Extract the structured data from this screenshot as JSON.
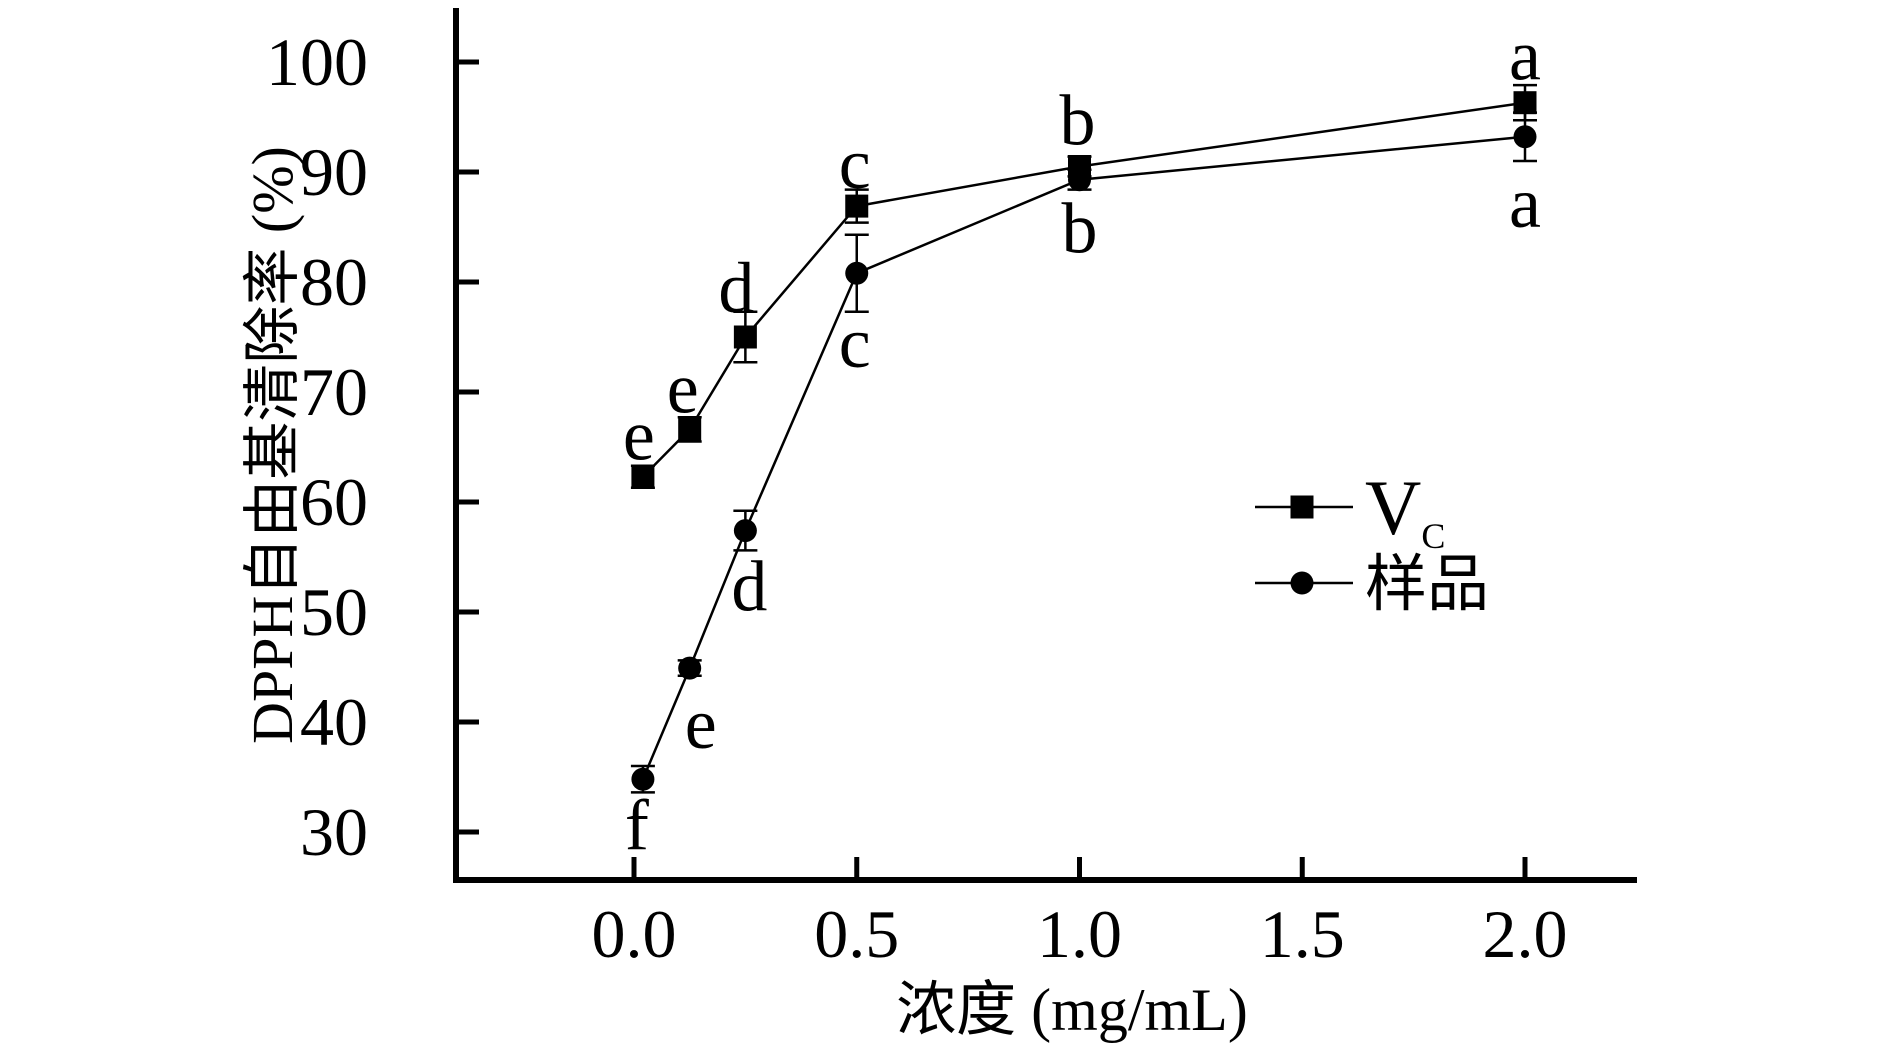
{
  "figure": {
    "background": "#ffffff",
    "ink": "#000000"
  },
  "chart_data": {
    "type": "line",
    "title": "",
    "xlabel": "浓度 (mg/mL)",
    "ylabel": "DPPH自由基清除率 (%)",
    "x_tick_labels": [
      "0.0",
      "0.5",
      "1.0",
      "1.5",
      "2.0"
    ],
    "x_tick_values": [
      0,
      0.5,
      1.0,
      1.5,
      2.0
    ],
    "y_tick_labels": [
      "30",
      "40",
      "50",
      "60",
      "70",
      "80",
      "90",
      "100"
    ],
    "y_tick_values": [
      30,
      40,
      50,
      60,
      70,
      80,
      90,
      100
    ],
    "xlim": [
      -0.4,
      2.28
    ],
    "ylim": [
      25.6,
      104.9
    ],
    "grid": false,
    "legend_position": "right-middle",
    "x": [
      0.02,
      0.125,
      0.25,
      0.5,
      1.0,
      2.0
    ],
    "series": [
      {
        "name": "Vc",
        "legend": {
          "main": "V",
          "sub": "C"
        },
        "marker": "square",
        "values": [
          62.3,
          66.6,
          75.0,
          86.9,
          90.5,
          96.3
        ],
        "errors": [
          1.0,
          1.1,
          2.3,
          1.5,
          0.9,
          1.6
        ],
        "point_labels": [
          "e",
          "e",
          "d",
          "c",
          "b",
          "a"
        ],
        "label_offsets": [
          [
            -4,
            -42
          ],
          [
            -7,
            -42
          ],
          [
            -9,
            -50
          ],
          [
            -2,
            -43
          ],
          [
            -2,
            -47
          ],
          [
            0,
            -48
          ]
        ]
      },
      {
        "name": "样品",
        "legend": {
          "main": "样品",
          "sub": ""
        },
        "marker": "circle",
        "values": [
          34.8,
          44.9,
          57.4,
          80.8,
          89.3,
          93.2
        ],
        "errors": [
          1.2,
          0.7,
          1.8,
          3.5,
          0.9,
          2.2
        ],
        "point_labels": [
          "f",
          "e",
          "d",
          "c",
          "b",
          "a"
        ],
        "label_offsets": [
          [
            -6,
            45
          ],
          [
            11,
            55
          ],
          [
            4,
            55
          ],
          [
            -2,
            69
          ],
          [
            0,
            48
          ],
          [
            0,
            65
          ]
        ]
      }
    ],
    "colors": {
      "ink": "#000000",
      "background": "#ffffff"
    }
  }
}
